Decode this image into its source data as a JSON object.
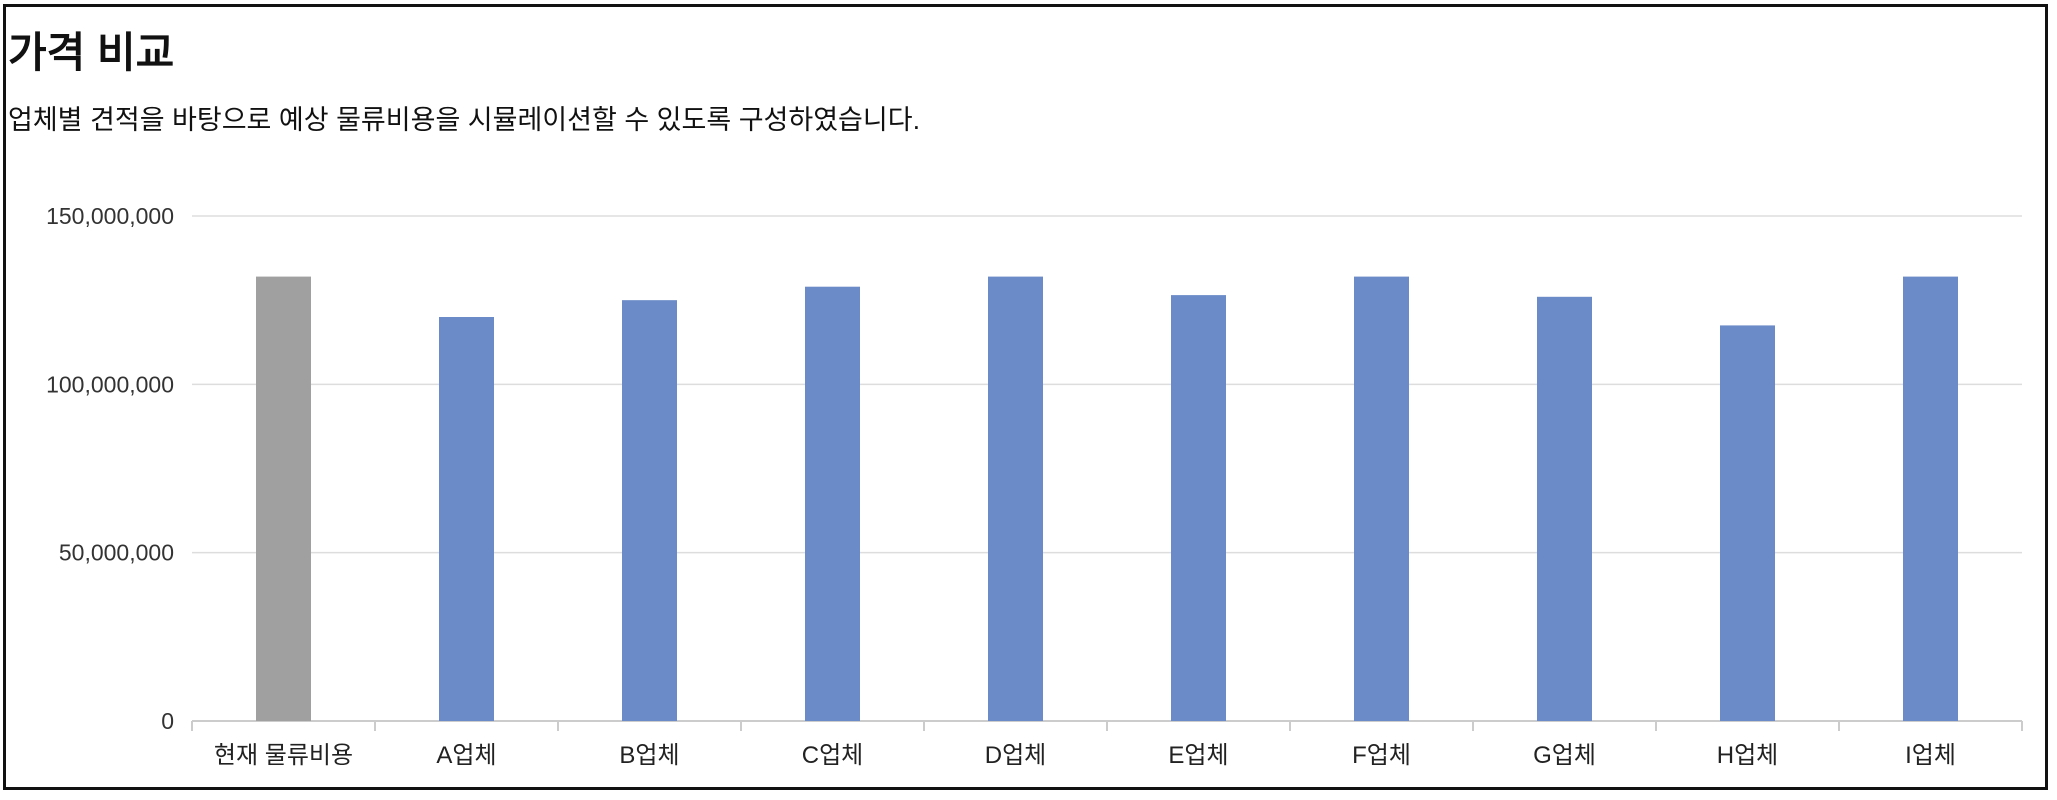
{
  "header": {
    "title": "가격 비교",
    "subtitle": "업체별 견적을 바탕으로 예상 물류비용을 시뮬레이션할 수 있도록 구성하였습니다."
  },
  "chart_data": {
    "type": "bar",
    "title": "",
    "xlabel": "",
    "ylabel": "",
    "ylim": [
      0,
      150000000
    ],
    "yticks": [
      0,
      50000000,
      100000000,
      150000000
    ],
    "ytick_labels": [
      "0",
      "50,000,000",
      "100,000,000",
      "150,000,000"
    ],
    "grid": true,
    "categories": [
      "현재 물류비용",
      "A업체",
      "B업체",
      "C업체",
      "D업체",
      "E업체",
      "F업체",
      "G업체",
      "H업체",
      "I업체"
    ],
    "values": [
      132000000,
      120000000,
      125000000,
      129000000,
      132000000,
      126500000,
      132000000,
      126000000,
      117500000,
      132000000
    ],
    "colors": {
      "current": "#a0a0a0",
      "vendor": "#6a8bc8",
      "grid": "#dddddd",
      "axis": "#cccccc"
    }
  }
}
